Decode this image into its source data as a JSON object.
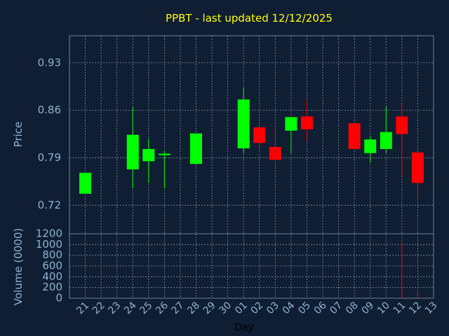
{
  "chart_data": {
    "type": "candlestick",
    "title": "PPBT - last updated 12/12/2025",
    "xlabel": "Day",
    "ylabel_price": "Price",
    "ylabel_volume": "Volume (0000)",
    "x_ticks": [
      "21",
      "22",
      "23",
      "24",
      "25",
      "26",
      "27",
      "28",
      "29",
      "30",
      "01",
      "02",
      "03",
      "04",
      "05",
      "06",
      "07",
      "08",
      "09",
      "10",
      "11",
      "12",
      "13"
    ],
    "price_ticks": [
      "0.72",
      "0.79",
      "0.86",
      "0.93"
    ],
    "price_tick_values": [
      0.72,
      0.79,
      0.86,
      0.93
    ],
    "price_ylim": [
      0.678,
      0.97
    ],
    "volume_ticks": [
      "0",
      "200",
      "400",
      "600",
      "800",
      "1000",
      "1200"
    ],
    "volume_tick_values": [
      0,
      200,
      400,
      600,
      800,
      1000,
      1200
    ],
    "volume_ylim": [
      0,
      1200
    ],
    "grid": true,
    "colors": {
      "up": "#00ff00",
      "down": "#ff0000",
      "title": "#ffff00",
      "axis_text": "#8fb2d2",
      "background": "#0f1e33"
    },
    "candles": [
      {
        "day": "21",
        "open": 0.737,
        "high": 0.768,
        "low": 0.737,
        "close": 0.768,
        "volume": 0
      },
      {
        "day": "24",
        "open": 0.773,
        "high": 0.865,
        "low": 0.745,
        "close": 0.824,
        "volume": 10
      },
      {
        "day": "25",
        "open": 0.785,
        "high": 0.818,
        "low": 0.753,
        "close": 0.803,
        "volume": 5
      },
      {
        "day": "26",
        "open": 0.794,
        "high": 0.8,
        "low": 0.745,
        "close": 0.796,
        "volume": 2
      },
      {
        "day": "28",
        "open": 0.781,
        "high": 0.826,
        "low": 0.781,
        "close": 0.826,
        "volume": 2
      },
      {
        "day": "01",
        "open": 0.804,
        "high": 0.893,
        "low": 0.797,
        "close": 0.876,
        "volume": 8
      },
      {
        "day": "02",
        "open": 0.835,
        "high": 0.835,
        "low": 0.805,
        "close": 0.812,
        "volume": 4
      },
      {
        "day": "03",
        "open": 0.806,
        "high": 0.835,
        "low": 0.787,
        "close": 0.787,
        "volume": 3
      },
      {
        "day": "04",
        "open": 0.83,
        "high": 0.85,
        "low": 0.797,
        "close": 0.85,
        "volume": 3
      },
      {
        "day": "05",
        "open": 0.851,
        "high": 0.876,
        "low": 0.814,
        "close": 0.832,
        "volume": 4
      },
      {
        "day": "08",
        "open": 0.841,
        "high": 0.841,
        "low": 0.803,
        "close": 0.803,
        "volume": 4
      },
      {
        "day": "09",
        "open": 0.797,
        "high": 0.822,
        "low": 0.783,
        "close": 0.817,
        "volume": 3
      },
      {
        "day": "10",
        "open": 0.803,
        "high": 0.866,
        "low": 0.797,
        "close": 0.828,
        "volume": 4
      },
      {
        "day": "11",
        "open": 0.851,
        "high": 0.87,
        "low": 0.763,
        "close": 0.825,
        "volume": 1050
      },
      {
        "day": "12",
        "open": 0.798,
        "high": 0.798,
        "low": 0.732,
        "close": 0.753,
        "volume": 80
      }
    ]
  }
}
